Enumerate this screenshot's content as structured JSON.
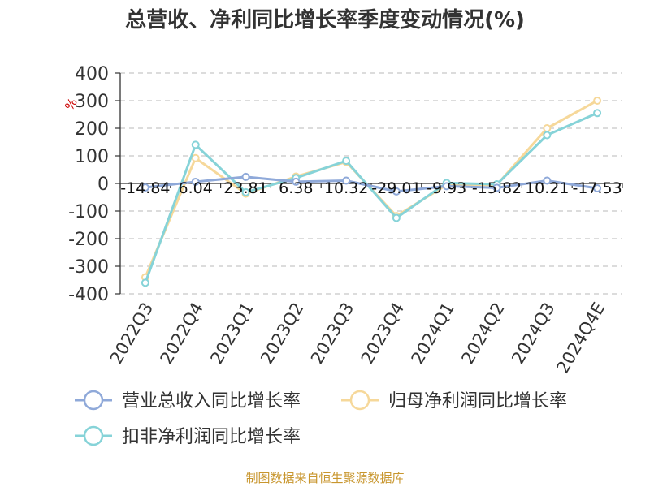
{
  "chart_data": {
    "type": "line",
    "title": "总营收、净利同比增长率季度变动情况(%)",
    "ylabel": "%",
    "ylim": [
      -400,
      400
    ],
    "yticks": [
      400,
      300,
      200,
      100,
      0,
      -100,
      -200,
      -300,
      -400
    ],
    "categories": [
      "2022Q3",
      "2022Q4",
      "2023Q1",
      "2023Q2",
      "2023Q3",
      "2023Q4",
      "2024Q1",
      "2024Q2",
      "2024Q3",
      "2024Q4E"
    ],
    "grid": true,
    "legend_position": "bottom",
    "series": [
      {
        "name": "营业总收入同比增长率",
        "color": "#8fa9d9",
        "values": [
          -14.84,
          6.04,
          23.81,
          6.38,
          10.32,
          -29.01,
          -9.93,
          -15.82,
          10.21,
          -17.53
        ],
        "data_labels": [
          "-14.84",
          "6.04",
          "23.81",
          "6.38",
          "10.32",
          "-29.01",
          "-9.93",
          "-15.82",
          "10.21",
          "-17.53"
        ]
      },
      {
        "name": "归母净利润同比增长率",
        "color": "#f6d89a",
        "values": [
          -340,
          92,
          -37,
          25,
          78,
          -118,
          -5,
          -5,
          200,
          300
        ]
      },
      {
        "name": "扣非净利润同比增长率",
        "color": "#86d3d8",
        "values": [
          -360,
          140,
          -32,
          20,
          82,
          -125,
          2,
          -3,
          175,
          255
        ]
      }
    ]
  },
  "footer": {
    "source": "制图数据来自恒生聚源数据库"
  }
}
